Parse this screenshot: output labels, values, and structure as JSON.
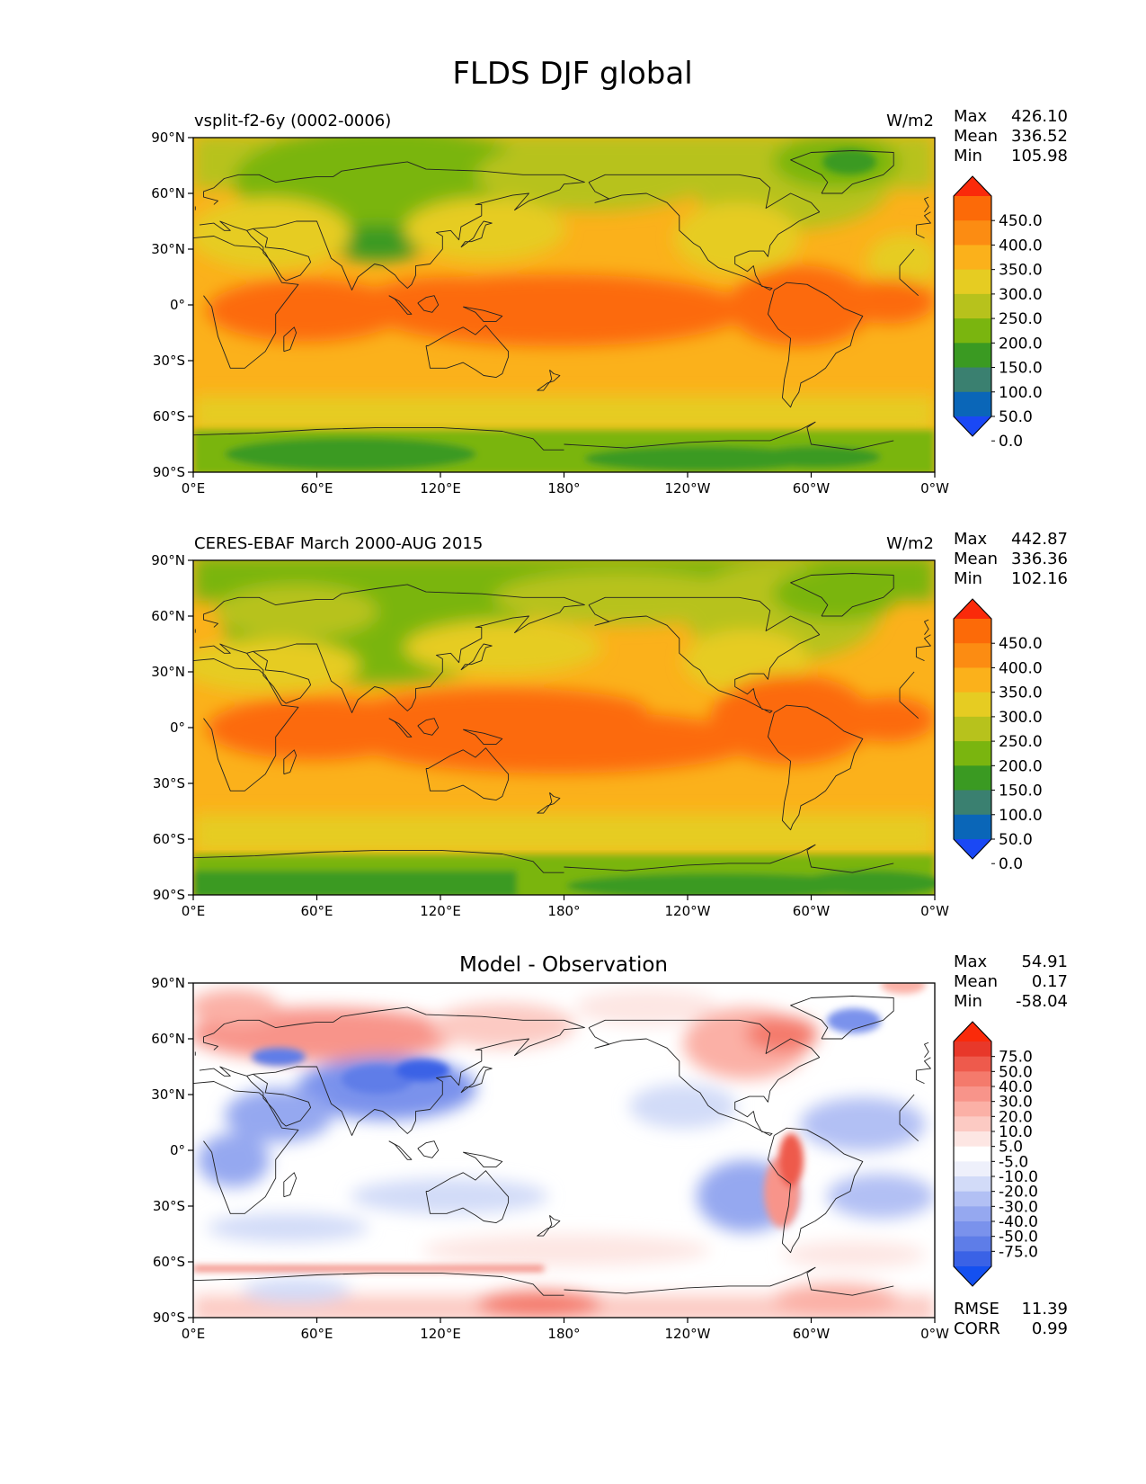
{
  "figure": {
    "title": "FLDS DJF global"
  },
  "colors": {
    "main_levels": [
      "#1a48f5",
      "#0a66b8",
      "#3a8070",
      "#3a9a22",
      "#7ab50f",
      "#b7c21c",
      "#e6cc22",
      "#fbb11b",
      "#fc8c12",
      "#fc6a08",
      "#fa2a0a"
    ],
    "diff_levels": [
      "#1450f0",
      "#3a62e6",
      "#5e7de8",
      "#7a92ec",
      "#95a8f0",
      "#b2c0f4",
      "#d2dbf8",
      "#eef0fb",
      "#ffffff",
      "#fde6e3",
      "#fccac3",
      "#fbb0a6",
      "#f8948a",
      "#f47a6c",
      "#ee5a4c",
      "#e8382a",
      "#fa2a0a"
    ],
    "coast": "#222222"
  },
  "axes": {
    "lat_ticks": [
      "90°N",
      "60°N",
      "30°N",
      "0°",
      "30°S",
      "60°S",
      "90°S"
    ],
    "lon_ticks": [
      "0°E",
      "60°E",
      "120°E",
      "180°",
      "120°W",
      "60°W",
      "0°W"
    ]
  },
  "panels": [
    {
      "id": "model",
      "left_title": "vsplit-f2-6y (0002-0006)",
      "center_title": "",
      "units": "W/m2",
      "stats": [
        {
          "label": "Max",
          "value": "426.10"
        },
        {
          "label": "Mean",
          "value": "336.52"
        },
        {
          "label": "Min",
          "value": "105.98"
        }
      ],
      "colorbar_labels": [
        "450.0",
        "400.0",
        "350.0",
        "300.0",
        "250.0",
        "200.0",
        "150.0",
        "100.0",
        "50.0",
        "0.0"
      ]
    },
    {
      "id": "obs",
      "left_title": "CERES-EBAF March 2000-AUG 2015",
      "center_title": "",
      "units": "W/m2",
      "stats": [
        {
          "label": "Max",
          "value": "442.87"
        },
        {
          "label": "Mean",
          "value": "336.36"
        },
        {
          "label": "Min",
          "value": "102.16"
        }
      ],
      "colorbar_labels": [
        "450.0",
        "400.0",
        "350.0",
        "300.0",
        "250.0",
        "200.0",
        "150.0",
        "100.0",
        "50.0",
        "0.0"
      ]
    },
    {
      "id": "diff",
      "left_title": "",
      "center_title": "Model - Observation",
      "units": "",
      "stats": [
        {
          "label": "Max",
          "value": "54.91"
        },
        {
          "label": "Mean",
          "value": "0.17"
        },
        {
          "label": "Min",
          "value": "-58.04"
        }
      ],
      "colorbar_labels": [
        "75.0",
        "50.0",
        "40.0",
        "30.0",
        "20.0",
        "10.0",
        "5.0",
        "-5.0",
        "-10.0",
        "-20.0",
        "-30.0",
        "-40.0",
        "-50.0",
        "-75.0"
      ],
      "metrics": [
        {
          "label": "RMSE",
          "value": "11.39"
        },
        {
          "label": "CORR",
          "value": "0.99"
        }
      ]
    }
  ]
}
